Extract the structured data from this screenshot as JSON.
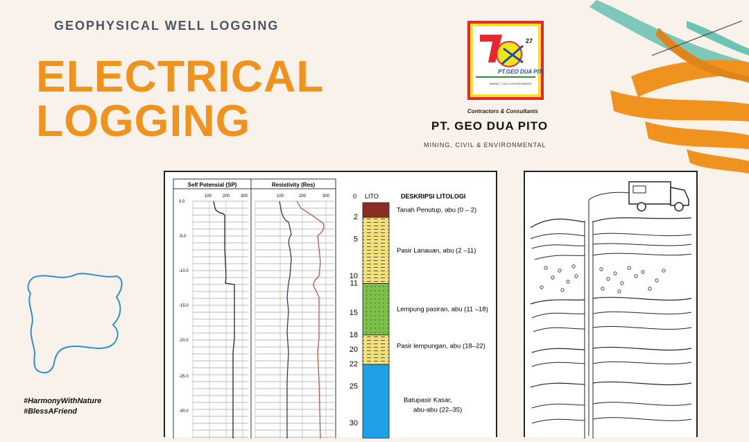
{
  "header": {
    "subtitle": "GEOPHYSICAL WELL LOGGING",
    "title_line1": "ELECTRICAL",
    "title_line2": "LOGGING"
  },
  "company": {
    "logo_text": "PT.GEO DUA PITO",
    "logo_subtext": "MINING, CIVIL & ENVIRONMENT",
    "logo_number": "27",
    "tagline": "Contractors & Consultants",
    "name": "PT. GEO DUA PITO",
    "sector": "MINING, CIVIL & ENVIRONMENTAL"
  },
  "hashtags": [
    "#HarmonyWithNature",
    "#BlessAFriend"
  ],
  "log_chart": {
    "sp_title": "Self Potensial (SP)",
    "res_title": "Resistivity (Res)",
    "sp_ticks": [
      "100",
      "200",
      "300"
    ],
    "res_ticks": [
      "100",
      "200",
      "300"
    ],
    "depth_ticks": [
      "0.0",
      "-5.0",
      "-10.0",
      "-15.0",
      "-20.0",
      "-25.0",
      "-30.0"
    ],
    "lito_header": "LITO",
    "desc_header": "DESKRIPSI LITOLOGI",
    "lito_depths": [
      "0",
      "2",
      "5",
      "10",
      "11",
      "15",
      "18",
      "20",
      "22",
      "25",
      "30"
    ],
    "layers": [
      {
        "top": 0,
        "bottom": 2,
        "color": "#8b2e23",
        "pattern": "solid"
      },
      {
        "top": 2,
        "bottom": 11,
        "color": "#f2e07a",
        "pattern": "dash"
      },
      {
        "top": 11,
        "bottom": 18,
        "color": "#7cc04a",
        "pattern": "dot"
      },
      {
        "top": 18,
        "bottom": 22,
        "color": "#f2e07a",
        "pattern": "dash"
      },
      {
        "top": 22,
        "bottom": 35,
        "color": "#1ea1e6",
        "pattern": "solid"
      }
    ],
    "descriptions": [
      {
        "lines": [
          "Tanah Penutup, abu (0 – 2)"
        ],
        "depth": 1
      },
      {
        "lines": [
          "Pasir Lanauan,  abu (2 –11)"
        ],
        "depth": 6.5
      },
      {
        "lines": [
          "Lempung pasiran, abu (11 –18)"
        ],
        "depth": 14.5
      },
      {
        "lines": [
          "Pasir lempungan, abu (18–22)"
        ],
        "depth": 19.5
      },
      {
        "lines": [
          "Batupasir Kasar,",
          "abu-abu (22–35)"
        ],
        "depth": 27.5
      }
    ]
  },
  "colors": {
    "accent_orange": "#f0921e",
    "teal": "#6fc3b2",
    "outline_blue": "#2c8fd0"
  }
}
